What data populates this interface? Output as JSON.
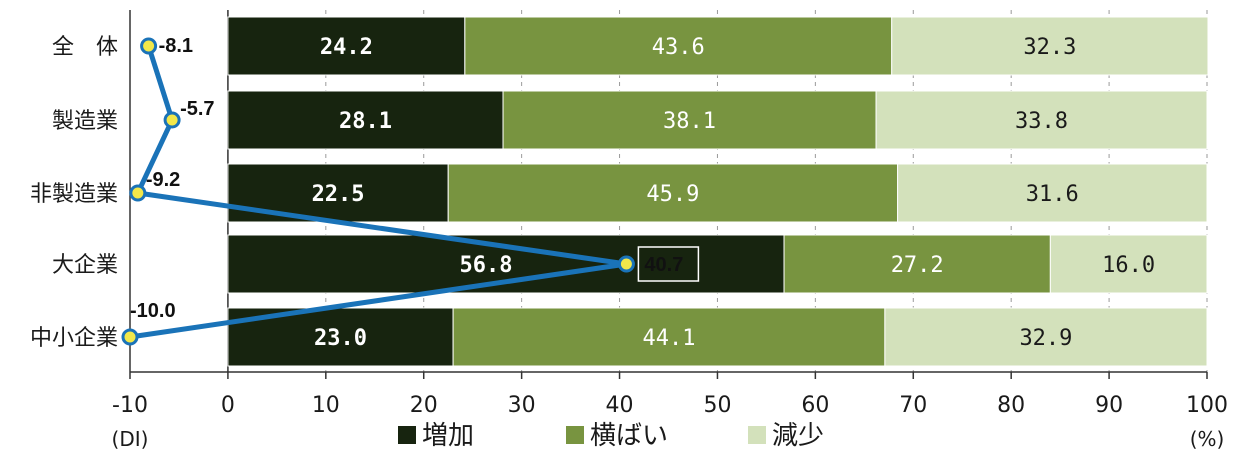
{
  "chart_data": {
    "type": "bar",
    "orientation": "horizontal-stacked",
    "categories": [
      "全　体",
      "製造業",
      "非製造業",
      "大企業",
      "中小企業"
    ],
    "series": [
      {
        "name": "増加",
        "values": [
          24.2,
          28.1,
          22.5,
          56.8,
          23.0
        ],
        "color": "#17240f",
        "label_color": "#ffffff"
      },
      {
        "name": "横ばい",
        "values": [
          43.6,
          38.1,
          45.9,
          27.2,
          44.1
        ],
        "color": "#789440",
        "label_color": "#ffffff"
      },
      {
        "name": "減少",
        "values": [
          32.3,
          33.8,
          31.6,
          16.0,
          32.9
        ],
        "color": "#d3e1bb",
        "label_color": "#1a1a1a"
      }
    ],
    "value_labels": [
      [
        "24.2",
        "43.6",
        "32.3"
      ],
      [
        "28.1",
        "38.1",
        "33.8"
      ],
      [
        "22.5",
        "45.9",
        "31.6"
      ],
      [
        "56.8",
        "27.2",
        "16.0"
      ],
      [
        "23.0",
        "44.1",
        "32.9"
      ]
    ],
    "di_series": {
      "values": [
        -8.1,
        -5.7,
        -9.2,
        40.7,
        -10.0
      ],
      "labels": [
        "-8.1",
        "-5.7",
        "-9.2",
        "40.7",
        "-10.0"
      ],
      "line_color": "#1a73b8",
      "marker_color": "#f2e84a"
    },
    "xlim": [
      -10,
      100
    ],
    "xticks": [
      -10,
      0,
      10,
      20,
      30,
      40,
      50,
      60,
      70,
      80,
      90,
      100
    ],
    "xtick_labels": [
      "-10",
      "0",
      "10",
      "20",
      "30",
      "40",
      "50",
      "60",
      "70",
      "80",
      "90",
      "100"
    ],
    "xlabel_left": "(DI)",
    "xlabel_right": "(%)",
    "legend": [
      "増加",
      "横ばい",
      "減少"
    ],
    "legend_position": "bottom"
  }
}
